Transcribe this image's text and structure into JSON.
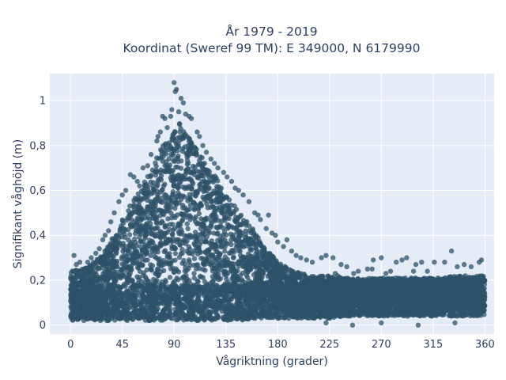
{
  "chart_data": {
    "type": "scatter",
    "title_lines": [
      "År 1979 - 2019",
      "Koordinat (Sweref 99 TM): E 349000, N 6179990"
    ],
    "xlabel": "Vågriktning (grader)",
    "ylabel": "Signifikant våghöjd (m)",
    "xlim": [
      -18,
      368
    ],
    "ylim": [
      -0.04,
      1.12
    ],
    "x_ticks": [
      0,
      45,
      90,
      135,
      180,
      225,
      270,
      315,
      360
    ],
    "x_tick_labels": [
      "0",
      "45",
      "90",
      "135",
      "180",
      "225",
      "270",
      "315",
      "360"
    ],
    "y_ticks": [
      0,
      0.2,
      0.4,
      0.6,
      0.8,
      1
    ],
    "y_tick_labels": [
      "0",
      "0,2",
      "0,4",
      "0,6",
      "0,8",
      "1"
    ],
    "grid": true,
    "legend": "none",
    "marker_color": "#2e5168",
    "plot_bg": "#e5ecf6",
    "series": [
      {
        "envelope": {
          "x": [
            0,
            10,
            20,
            30,
            40,
            50,
            60,
            70,
            80,
            90,
            95,
            100,
            110,
            120,
            130,
            140,
            150,
            160,
            170,
            180,
            190,
            200,
            210,
            225,
            240,
            260,
            280,
            300,
            320,
            340,
            360
          ],
          "ymax": [
            0.24,
            0.25,
            0.28,
            0.33,
            0.42,
            0.52,
            0.6,
            0.7,
            0.8,
            0.87,
            0.9,
            0.86,
            0.78,
            0.7,
            0.64,
            0.55,
            0.48,
            0.42,
            0.34,
            0.28,
            0.25,
            0.23,
            0.22,
            0.22,
            0.21,
            0.21,
            0.21,
            0.21,
            0.21,
            0.22,
            0.22
          ],
          "ymin": [
            0.02,
            0.02,
            0.02,
            0.02,
            0.02,
            0.02,
            0.02,
            0.02,
            0.02,
            0.02,
            0.02,
            0.02,
            0.02,
            0.02,
            0.02,
            0.02,
            0.02,
            0.03,
            0.03,
            0.03,
            0.03,
            0.03,
            0.03,
            0.03,
            0.04,
            0.04,
            0.04,
            0.04,
            0.04,
            0.04,
            0.04
          ]
        },
        "points": [
          [
            90,
            1.08
          ],
          [
            92,
            1.05
          ],
          [
            91,
            1.04
          ],
          [
            96,
            1.01
          ],
          [
            98,
            0.99
          ],
          [
            88,
            0.96
          ],
          [
            94,
            0.95
          ],
          [
            100,
            0.94
          ],
          [
            103,
            0.93
          ],
          [
            105,
            0.92
          ],
          [
            80,
            0.93
          ],
          [
            82,
            0.92
          ],
          [
            87,
            0.93
          ],
          [
            84,
            0.88
          ],
          [
            78,
            0.86
          ],
          [
            76,
            0.84
          ],
          [
            75,
            0.82
          ],
          [
            70,
            0.76
          ],
          [
            67,
            0.71
          ],
          [
            63,
            0.7
          ],
          [
            52,
            0.67
          ],
          [
            55,
            0.66
          ],
          [
            58,
            0.64
          ],
          [
            60,
            0.62
          ],
          [
            48,
            0.6
          ],
          [
            45,
            0.58
          ],
          [
            42,
            0.55
          ],
          [
            38,
            0.5
          ],
          [
            35,
            0.46
          ],
          [
            33,
            0.42
          ],
          [
            30,
            0.4
          ],
          [
            28,
            0.38
          ],
          [
            25,
            0.34
          ],
          [
            22,
            0.32
          ],
          [
            18,
            0.3
          ],
          [
            15,
            0.28
          ],
          [
            8,
            0.28
          ],
          [
            3,
            0.31
          ],
          [
            5,
            0.27
          ],
          [
            110,
            0.86
          ],
          [
            112,
            0.84
          ],
          [
            115,
            0.8
          ],
          [
            118,
            0.77
          ],
          [
            122,
            0.74
          ],
          [
            125,
            0.72
          ],
          [
            128,
            0.7
          ],
          [
            133,
            0.68
          ],
          [
            136,
            0.66
          ],
          [
            140,
            0.64
          ],
          [
            143,
            0.61
          ],
          [
            146,
            0.6
          ],
          [
            150,
            0.58
          ],
          [
            155,
            0.55
          ],
          [
            160,
            0.5
          ],
          [
            163,
            0.49
          ],
          [
            165,
            0.47
          ],
          [
            170,
            0.43
          ],
          [
            175,
            0.41
          ],
          [
            178,
            0.4
          ],
          [
            172,
            0.49
          ],
          [
            180,
            0.37
          ],
          [
            185,
            0.35
          ],
          [
            188,
            0.38
          ],
          [
            192,
            0.33
          ],
          [
            196,
            0.31
          ],
          [
            200,
            0.3
          ],
          [
            205,
            0.29
          ],
          [
            210,
            0.28
          ],
          [
            218,
            0.3
          ],
          [
            222,
            0.31
          ],
          [
            228,
            0.3
          ],
          [
            235,
            0.27
          ],
          [
            240,
            0.26
          ],
          [
            246,
            0.23
          ],
          [
            250,
            0.24
          ],
          [
            258,
            0.25
          ],
          [
            263,
            0.29
          ],
          [
            270,
            0.3
          ],
          [
            278,
            0.24
          ],
          [
            283,
            0.28
          ],
          [
            288,
            0.29
          ],
          [
            292,
            0.3
          ],
          [
            300,
            0.27
          ],
          [
            305,
            0.28
          ],
          [
            316,
            0.28
          ],
          [
            325,
            0.28
          ],
          [
            331,
            0.33
          ],
          [
            336,
            0.26
          ],
          [
            342,
            0.27
          ],
          [
            348,
            0.26
          ],
          [
            355,
            0.28
          ],
          [
            357,
            0.29
          ],
          [
            230,
            0.23
          ],
          [
            232,
            0.22
          ],
          [
            262,
            0.25
          ],
          [
            274,
            0.23
          ],
          [
            298,
            0.24
          ],
          [
            310,
            0.24
          ],
          [
            222,
            0.01
          ],
          [
            245,
            0.0
          ],
          [
            270,
            0.01
          ],
          [
            302,
            0.0
          ],
          [
            334,
            0.01
          ]
        ]
      }
    ]
  }
}
